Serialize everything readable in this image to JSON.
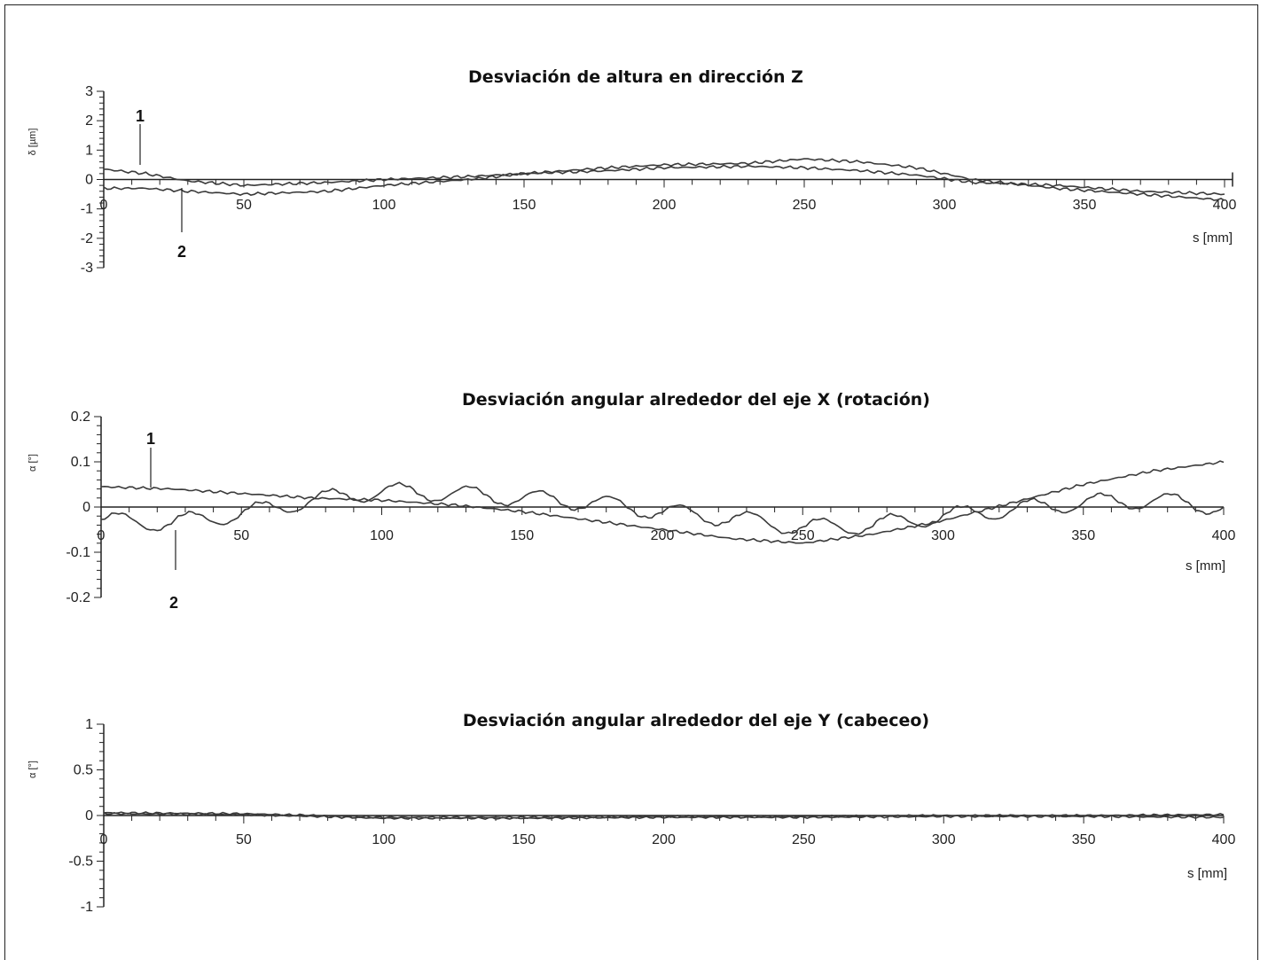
{
  "chart_data": [
    {
      "type": "line",
      "title": "Desviación de altura en dirección Z",
      "ylabel": "δ [µm]",
      "xlabel": "s [mm]",
      "xlim": [
        0,
        400
      ],
      "ylim": [
        -3,
        3
      ],
      "x_ticks": [
        "0",
        "50",
        "100",
        "150",
        "200",
        "250",
        "300",
        "350",
        "400"
      ],
      "y_ticks": [
        "3",
        "2",
        "1",
        "0",
        "-1",
        "-2",
        "-3"
      ],
      "callouts": [
        "1",
        "2"
      ],
      "series": [
        {
          "name": "1",
          "x": [
            0,
            15,
            30,
            50,
            80,
            100,
            130,
            150,
            180,
            200,
            230,
            250,
            270,
            290,
            310,
            340,
            370,
            400
          ],
          "y": [
            0.35,
            0.2,
            -0.05,
            -0.2,
            -0.1,
            0.0,
            0.1,
            0.2,
            0.4,
            0.5,
            0.55,
            0.7,
            0.6,
            0.4,
            0.0,
            -0.3,
            -0.5,
            -0.7
          ]
        },
        {
          "name": "2",
          "x": [
            0,
            15,
            30,
            50,
            80,
            100,
            130,
            150,
            180,
            200,
            230,
            250,
            270,
            290,
            310,
            340,
            370,
            400
          ],
          "y": [
            -0.3,
            -0.3,
            -0.4,
            -0.5,
            -0.4,
            -0.2,
            0.0,
            0.2,
            0.3,
            0.4,
            0.45,
            0.4,
            0.3,
            0.15,
            -0.1,
            -0.2,
            -0.4,
            -0.5
          ]
        }
      ]
    },
    {
      "type": "line",
      "title": "Desviación angular alrededor del eje X (rotación)",
      "ylabel": "α [°]",
      "xlabel": "s [mm]",
      "xlim": [
        0,
        400
      ],
      "ylim": [
        -0.2,
        0.2
      ],
      "x_ticks": [
        "0",
        "50",
        "100",
        "150",
        "200",
        "250",
        "300",
        "350",
        "400"
      ],
      "y_ticks": [
        "0.2",
        "0.1",
        "0",
        "-0.1",
        "-0.2"
      ],
      "callouts": [
        "1",
        "2"
      ],
      "series": [
        {
          "name": "1",
          "x": [
            0,
            25,
            50,
            75,
            100,
            125,
            150,
            175,
            200,
            225,
            250,
            275,
            300,
            325,
            350,
            375,
            400
          ],
          "y": [
            0.045,
            0.04,
            0.03,
            0.02,
            0.015,
            0.005,
            -0.01,
            -0.03,
            -0.05,
            -0.07,
            -0.08,
            -0.06,
            -0.03,
            0.01,
            0.05,
            0.08,
            0.1
          ]
        },
        {
          "name": "2",
          "x": [
            0,
            25,
            50,
            75,
            100,
            125,
            150,
            175,
            200,
            225,
            250,
            275,
            300,
            325,
            350,
            375,
            400
          ],
          "y": [
            -0.03,
            -0.035,
            -0.015,
            0.015,
            0.035,
            0.03,
            0.02,
            0.01,
            -0.01,
            -0.025,
            -0.045,
            -0.04,
            -0.02,
            -0.005,
            0.01,
            0.015,
            0.0
          ]
        }
      ]
    },
    {
      "type": "line",
      "title": "Desviación angular alrededor del eje Y (cabeceo)",
      "ylabel": "α [°]",
      "xlabel": "s [mm]",
      "xlim": [
        0,
        400
      ],
      "ylim": [
        -1,
        1
      ],
      "x_ticks": [
        "0",
        "50",
        "100",
        "150",
        "200",
        "250",
        "300",
        "350",
        "400"
      ],
      "y_ticks": [
        "1",
        "0.5",
        "0",
        "-0.5",
        "-1"
      ],
      "series": [
        {
          "name": "1",
          "x": [
            0,
            50,
            100,
            150,
            200,
            250,
            300,
            350,
            400
          ],
          "y": [
            0.03,
            0.02,
            -0.02,
            -0.02,
            -0.01,
            -0.01,
            0.0,
            0.0,
            0.01
          ]
        },
        {
          "name": "2",
          "x": [
            0,
            50,
            100,
            150,
            200,
            250,
            300,
            350,
            400
          ],
          "y": [
            0.02,
            0.01,
            -0.03,
            -0.03,
            -0.02,
            -0.02,
            -0.01,
            -0.01,
            -0.02
          ]
        }
      ]
    }
  ]
}
